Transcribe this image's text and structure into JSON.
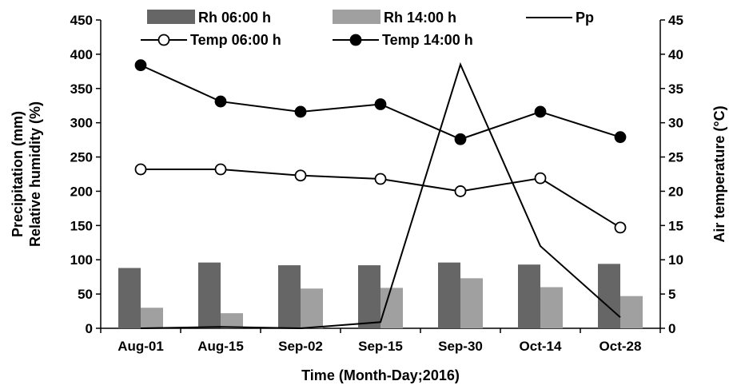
{
  "chart_data": {
    "type": "bar+line",
    "categories": [
      "Aug-01",
      "Aug-15",
      "Sep-02",
      "Sep-15",
      "Sep-30",
      "Oct-14",
      "Oct-28"
    ],
    "xlabel": "Time (Month-Day;2016)",
    "ylabel_left_line1": "Precipitation (mm)",
    "ylabel_left_line2": "Relative humidity (%)",
    "ylabel_right": "Air temperature (°C)",
    "ylim_left": [
      0,
      450
    ],
    "yticks_left": [
      0,
      50,
      100,
      150,
      200,
      250,
      300,
      350,
      400,
      450
    ],
    "ylim_right": [
      0,
      45
    ],
    "yticks_right": [
      0,
      5,
      10,
      15,
      20,
      25,
      30,
      35,
      40,
      45
    ],
    "grid": false,
    "legend_position": "top",
    "bar_series": [
      {
        "name": "Rh 06:00 h",
        "axis": "left",
        "color": "#666666",
        "values": [
          88,
          96,
          92,
          92,
          96,
          93,
          94
        ]
      },
      {
        "name": "Rh 14:00 h",
        "axis": "left",
        "color": "#a0a0a0",
        "values": [
          30,
          22,
          58,
          59,
          73,
          60,
          47
        ]
      }
    ],
    "line_series": [
      {
        "name": "Pp",
        "axis": "left",
        "color": "#000000",
        "marker": "none",
        "values": [
          0,
          2,
          0,
          9,
          385,
          120,
          16
        ]
      },
      {
        "name": "Temp 06:00 h",
        "axis": "right",
        "color": "#000000",
        "marker": "open-circle",
        "values": [
          23.2,
          23.2,
          22.3,
          21.8,
          20.0,
          21.9,
          14.7
        ]
      },
      {
        "name": "Temp 14:00 h",
        "axis": "right",
        "color": "#000000",
        "marker": "filled-circle",
        "values": [
          38.4,
          33.1,
          31.6,
          32.7,
          27.6,
          31.6,
          27.9
        ]
      }
    ]
  }
}
